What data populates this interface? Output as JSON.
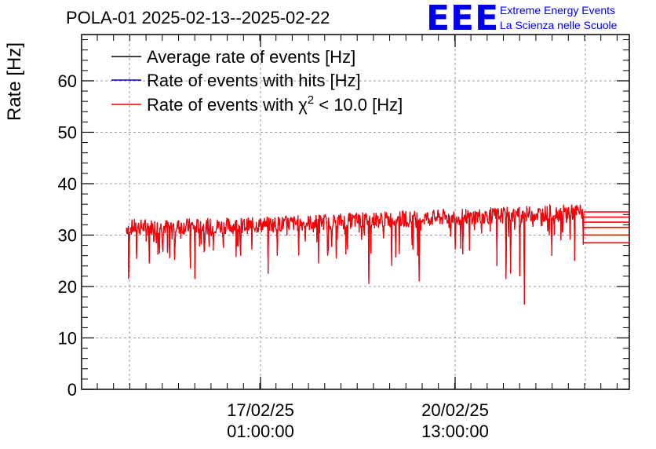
{
  "title": "POLA-01 2025-02-13--2025-02-22",
  "logo": {
    "mark": "EEE",
    "line1": "Extreme Energy Events",
    "line2": "La Scienza nelle Scuole"
  },
  "chart_data": {
    "type": "line",
    "ylabel": "Rate [Hz]",
    "xlabel": "",
    "ylim": [
      0,
      69
    ],
    "yticks": [
      0,
      10,
      20,
      30,
      40,
      50,
      60
    ],
    "x_tick_labels": [
      {
        "date": "17/02/25",
        "time": "01:00:00"
      },
      {
        "date": "20/02/25",
        "time": "13:00:00"
      }
    ],
    "grid": true,
    "legend_position": "top-left",
    "legend": [
      {
        "label": "Average rate of events [Hz]",
        "color": "#000000"
      },
      {
        "label": "Rate of events with hits [Hz]",
        "color": "#0000cc"
      },
      {
        "label_prefix": "Rate of events with ",
        "label_symbol": "χ",
        "label_sup": "2",
        "label_suffix": " < 10.0 [Hz]",
        "color": "#ff0000"
      }
    ],
    "series": [
      {
        "name": "Average rate of events [Hz]",
        "color": "#000000",
        "trend": [
          [
            0,
            31.5
          ],
          [
            0.25,
            31.8
          ],
          [
            0.5,
            32.8
          ],
          [
            0.75,
            33.6
          ],
          [
            1,
            34.5
          ]
        ]
      },
      {
        "name": "Rate of events with hits [Hz]",
        "color": "#0000cc",
        "trend": [
          [
            0,
            31.5
          ],
          [
            0.25,
            31.8
          ],
          [
            0.5,
            32.8
          ],
          [
            0.75,
            33.6
          ],
          [
            1,
            34.5
          ]
        ]
      },
      {
        "name": "Rate of events with χ² < 10.0 [Hz]",
        "color": "#ff0000",
        "trend": [
          [
            0,
            31.5
          ],
          [
            0.25,
            31.8
          ],
          [
            0.5,
            32.8
          ],
          [
            0.75,
            33.6
          ],
          [
            1,
            34.5
          ]
        ]
      }
    ],
    "dips": [
      {
        "t": 0.005,
        "y": 21.5
      },
      {
        "t": 0.05,
        "y": 24.5
      },
      {
        "t": 0.09,
        "y": 26.5
      },
      {
        "t": 0.14,
        "y": 23.5
      },
      {
        "t": 0.15,
        "y": 21.5
      },
      {
        "t": 0.19,
        "y": 27.0
      },
      {
        "t": 0.25,
        "y": 26.0
      },
      {
        "t": 0.31,
        "y": 22.5
      },
      {
        "t": 0.33,
        "y": 26.0
      },
      {
        "t": 0.42,
        "y": 24.5
      },
      {
        "t": 0.44,
        "y": 26.0
      },
      {
        "t": 0.53,
        "y": 20.5
      },
      {
        "t": 0.58,
        "y": 24.0
      },
      {
        "t": 0.64,
        "y": 21.0
      },
      {
        "t": 0.75,
        "y": 27.0
      },
      {
        "t": 0.81,
        "y": 24.0
      },
      {
        "t": 0.83,
        "y": 21.5
      },
      {
        "t": 0.84,
        "y": 22.5
      },
      {
        "t": 0.86,
        "y": 22.0
      },
      {
        "t": 0.87,
        "y": 16.5
      },
      {
        "t": 0.93,
        "y": 26.0
      },
      {
        "t": 0.98,
        "y": 25.0
      }
    ],
    "tail_levels": [
      28.5,
      30.0,
      31.5,
      32.5,
      33.5,
      34.5
    ]
  }
}
